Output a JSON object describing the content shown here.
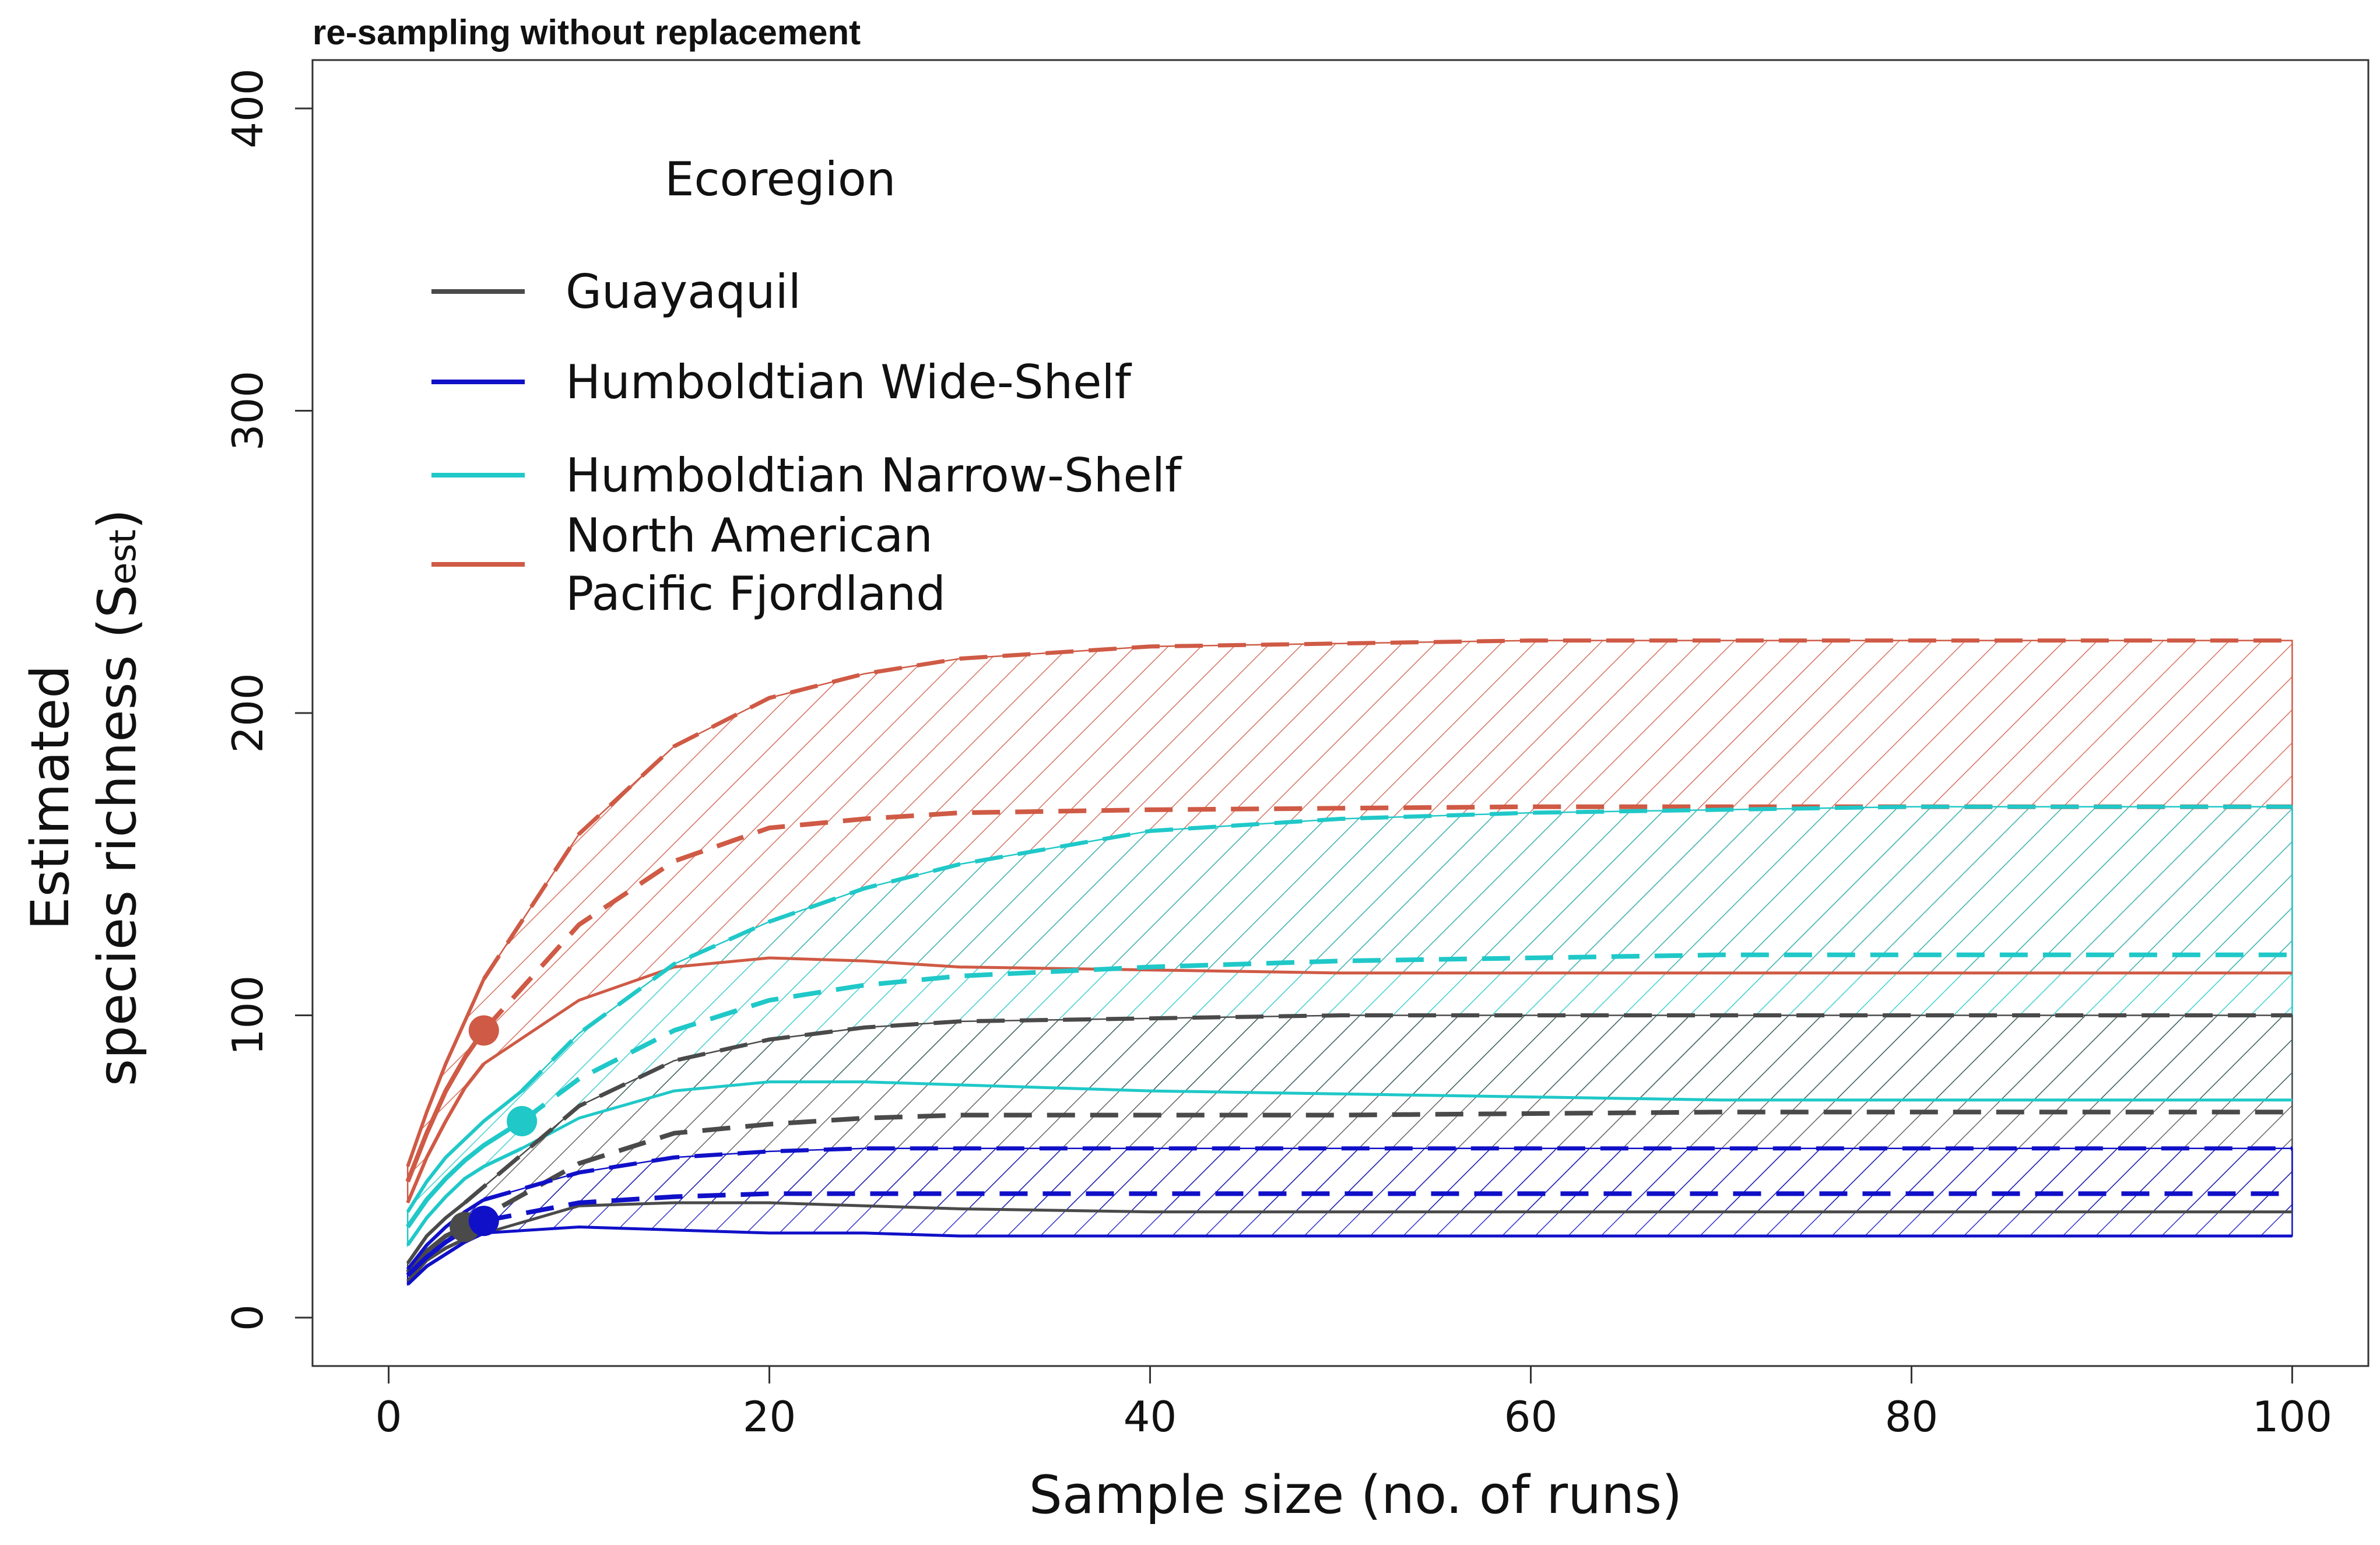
{
  "chart_data": {
    "type": "line",
    "title": "re-sampling without replacement",
    "xlabel": "Sample size (no. of runs)",
    "ylabel_line1": "Estimated",
    "ylabel_line2_prefix": "species richness (S",
    "ylabel_subscript": "est",
    "ylabel_line2_suffix": ")",
    "xlim": [
      -4,
      104
    ],
    "ylim": [
      -16,
      416
    ],
    "x_ticks": [
      0,
      20,
      40,
      60,
      80,
      100
    ],
    "x_tick_labels": [
      "0",
      "20",
      "40",
      "60",
      "80",
      "100"
    ],
    "y_ticks": [
      0,
      100,
      200,
      300,
      400
    ],
    "y_tick_labels": [
      "0",
      "100",
      "200",
      "300",
      "400"
    ],
    "legend": {
      "title": "Ecoregion",
      "placement": "top-left",
      "entries": [
        {
          "lines": [
            "Guayaquil"
          ],
          "color": "#4a4a4a"
        },
        {
          "lines": [
            "Humboldtian Wide-Shelf"
          ],
          "color": "#1010c8"
        },
        {
          "lines": [
            "Humboldtian Narrow-Shelf"
          ],
          "color": "#20c8c8"
        },
        {
          "lines": [
            "North American",
            "Pacific Fjordland"
          ],
          "color": "#cf5a45"
        }
      ]
    },
    "series": [
      {
        "name": "North American Pacific Fjordland",
        "color": "#cf5a45",
        "observed_point": {
          "x": 5,
          "y": 95
        },
        "rarefaction": {
          "x": [
            1,
            2,
            3,
            4,
            5
          ],
          "estimate": [
            45,
            61,
            75,
            86,
            95
          ],
          "upper": [
            50,
            68,
            84,
            98,
            112
          ],
          "lower": [
            38,
            53,
            65,
            76,
            84
          ]
        },
        "extrapolation": {
          "x": [
            5,
            10,
            15,
            20,
            25,
            30,
            40,
            50,
            60,
            70,
            80,
            90,
            100
          ],
          "estimate": [
            95,
            130,
            151,
            162,
            165,
            167,
            168,
            168.5,
            169,
            169,
            169,
            169,
            169
          ],
          "upper": [
            112,
            160,
            189,
            205,
            213,
            218,
            222,
            223,
            224,
            224,
            224,
            224,
            224
          ],
          "lower": [
            84,
            105,
            116,
            119,
            118,
            116,
            115,
            114,
            114,
            114,
            114,
            114,
            114
          ]
        }
      },
      {
        "name": "Humboldtian Narrow-Shelf",
        "color": "#20c8c8",
        "observed_point": {
          "x": 7,
          "y": 65
        },
        "rarefaction": {
          "x": [
            1,
            2,
            3,
            4,
            5,
            6,
            7
          ],
          "estimate": [
            30,
            39,
            46,
            52,
            57,
            61,
            65
          ],
          "upper": [
            35,
            45,
            53,
            59,
            65,
            70,
            75
          ],
          "lower": [
            24,
            33,
            40,
            46,
            50,
            53,
            56
          ]
        },
        "extrapolation": {
          "x": [
            7,
            10,
            15,
            20,
            25,
            30,
            40,
            50,
            60,
            70,
            80,
            90,
            100
          ],
          "estimate": [
            65,
            79,
            95,
            105,
            110,
            113,
            116,
            118,
            119,
            120,
            120,
            120,
            120
          ],
          "upper": [
            75,
            94,
            117,
            131,
            142,
            150,
            161,
            165,
            167,
            168,
            169,
            169,
            169
          ],
          "lower": [
            56,
            66,
            75,
            78,
            78,
            77,
            75,
            74,
            73,
            72,
            72,
            72,
            72
          ]
        }
      },
      {
        "name": "Guayaquil",
        "color": "#4a4a4a",
        "observed_point": {
          "x": 4,
          "y": 30
        },
        "rarefaction": {
          "x": [
            1,
            2,
            3,
            4
          ],
          "estimate": [
            15,
            22,
            27,
            30
          ],
          "upper": [
            18,
            27,
            33,
            38
          ],
          "lower": [
            12,
            19,
            23,
            26
          ]
        },
        "extrapolation": {
          "x": [
            4,
            10,
            15,
            20,
            25,
            30,
            40,
            50,
            60,
            70,
            80,
            90,
            100
          ],
          "estimate": [
            30,
            51,
            61,
            64,
            66,
            67,
            67,
            67,
            67.5,
            68,
            68,
            68,
            68
          ],
          "upper": [
            38,
            70,
            85,
            92,
            96,
            98,
            99,
            100,
            100,
            100,
            100,
            100,
            100
          ],
          "lower": [
            26,
            37,
            38,
            38,
            37,
            36,
            35,
            35,
            35,
            35,
            35,
            35,
            35
          ]
        }
      },
      {
        "name": "Humboldtian Wide-Shelf",
        "color": "#1010c8",
        "observed_point": {
          "x": 5,
          "y": 32
        },
        "rarefaction": {
          "x": [
            1,
            2,
            3,
            4,
            5
          ],
          "estimate": [
            14,
            20,
            25,
            29,
            32
          ],
          "upper": [
            16,
            24,
            30,
            35,
            39
          ],
          "lower": [
            11,
            17,
            21,
            25,
            28
          ]
        },
        "extrapolation": {
          "x": [
            5,
            10,
            15,
            20,
            25,
            30,
            40,
            50,
            60,
            70,
            80,
            90,
            100
          ],
          "estimate": [
            32,
            38,
            40,
            41,
            41,
            41,
            41,
            41,
            41,
            41,
            41,
            41,
            41
          ],
          "upper": [
            39,
            48,
            53,
            55,
            56,
            56,
            56,
            56,
            56,
            56,
            56,
            56,
            56
          ],
          "lower": [
            28,
            30,
            29,
            28,
            28,
            27,
            27,
            27,
            27,
            27,
            27,
            27,
            27
          ]
        }
      }
    ]
  }
}
